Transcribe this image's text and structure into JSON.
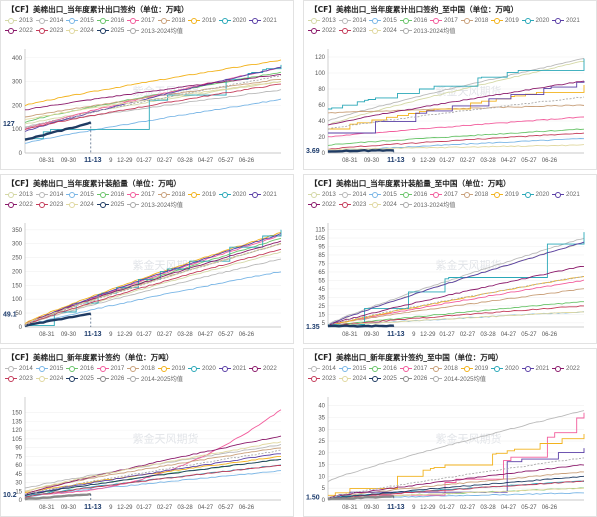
{
  "watermark": "紫金天风期货",
  "x_ticks": [
    "08-31",
    "09-30",
    "11-13",
    "9",
    "12-29",
    "01-27",
    "02-27",
    "03-28",
    "04-27",
    "05-27",
    "06-26"
  ],
  "x_tick_pos": [
    0.085,
    0.17,
    0.265,
    0.335,
    0.39,
    0.465,
    0.545,
    0.625,
    0.705,
    0.785,
    0.865
  ],
  "colors": {
    "2013": "#d4d8a6",
    "2014": "#b9b9b9",
    "2015": "#7ab6e6",
    "2016": "#6ac46a",
    "2017": "#f25c9c",
    "2018": "#c9a07a",
    "2019": "#f2b21c",
    "2020": "#2aa8b8",
    "2021": "#5a3fa6",
    "2022": "#8b1a6b",
    "2023": "#c43c5a",
    "2024": "#e0d8a0",
    "2025": "#1f3b63",
    "2026": "#8a8a8a",
    "avg": "#aaaaaa"
  },
  "panels": [
    {
      "title": "【CF】美棉出口_当年度累计出口签约（单位：万吨）",
      "legend": [
        "2013",
        "2014",
        "2015",
        "2016",
        "2017",
        "2018",
        "2019",
        "2020",
        "2021",
        "2022",
        "2023",
        "2024",
        "2025",
        "2013-2024均值"
      ],
      "legend_keys": [
        "2013",
        "2014",
        "2015",
        "2016",
        "2017",
        "2018",
        "2019",
        "2020",
        "2021",
        "2022",
        "2023",
        "2024",
        "2025",
        "avg"
      ],
      "y_ticks": [
        0,
        100,
        200,
        300,
        400
      ],
      "current": "127",
      "chart_data": {
        "type": "line",
        "ylim": [
          0,
          420
        ],
        "series": [
          {
            "key": "2013",
            "start": 120,
            "end": 300
          },
          {
            "key": "2014",
            "start": 110,
            "end": 265
          },
          {
            "key": "2015",
            "start": 40,
            "end": 225
          },
          {
            "key": "2016",
            "start": 130,
            "end": 340
          },
          {
            "key": "2017",
            "start": 100,
            "end": 360
          },
          {
            "key": "2018",
            "start": 150,
            "end": 310
          },
          {
            "key": "2019",
            "start": 200,
            "end": 390
          },
          {
            "key": "2020",
            "start": 60,
            "end": 370,
            "step": true
          },
          {
            "key": "2021",
            "start": 90,
            "end": 360
          },
          {
            "key": "2022",
            "start": 180,
            "end": 330
          },
          {
            "key": "2023",
            "start": 100,
            "end": 290
          },
          {
            "key": "2024",
            "start": 140,
            "end": 300
          },
          {
            "key": "2025",
            "start": 55,
            "end": 127,
            "partial": 0.26
          },
          {
            "key": "avg",
            "start": 105,
            "end": 325,
            "dashed": true
          }
        ]
      }
    },
    {
      "title": "【CF】美棉出口_当年度累计出口签约_至中国（单位：万吨）",
      "legend": [
        "2013",
        "2014",
        "2015",
        "2016",
        "2017",
        "2018",
        "2019",
        "2020",
        "2021",
        "2022",
        "2023",
        "2024",
        "2013-2024均值"
      ],
      "legend_keys": [
        "2013",
        "2014",
        "2015",
        "2016",
        "2017",
        "2018",
        "2019",
        "2020",
        "2021",
        "2022",
        "2023",
        "2024",
        "avg"
      ],
      "y_ticks": [
        0,
        20,
        40,
        60,
        80,
        100,
        120
      ],
      "current": "3.69",
      "chart_data": {
        "type": "line",
        "ylim": [
          0,
          125
        ],
        "series": [
          {
            "key": "2013",
            "start": 35,
            "end": 115
          },
          {
            "key": "2014",
            "start": 40,
            "end": 118
          },
          {
            "key": "2015",
            "start": 2,
            "end": 18
          },
          {
            "key": "2016",
            "start": 10,
            "end": 30
          },
          {
            "key": "2017",
            "start": 20,
            "end": 45
          },
          {
            "key": "2018",
            "start": 50,
            "end": 60
          },
          {
            "key": "2019",
            "start": 30,
            "end": 85,
            "step": true
          },
          {
            "key": "2020",
            "start": 55,
            "end": 118,
            "step": true
          },
          {
            "key": "2021",
            "start": 25,
            "end": 90,
            "step": true
          },
          {
            "key": "2022",
            "start": 35,
            "end": 90
          },
          {
            "key": "2023",
            "start": 5,
            "end": 25
          },
          {
            "key": "2024",
            "start": 4,
            "end": 10
          },
          {
            "key": "avg",
            "start": 30,
            "end": 70,
            "dashed": true
          },
          {
            "key": "2025",
            "start": 2,
            "end": 3.69,
            "partial": 0.26
          }
        ]
      }
    },
    {
      "title": "【CF】美棉出口_当年度累计装船量（单位：万吨）",
      "legend": [
        "2013",
        "2014",
        "2015",
        "2016",
        "2017",
        "2018",
        "2019",
        "2020",
        "2021",
        "2022",
        "2023",
        "2024",
        "2025",
        "2013-2024均值"
      ],
      "legend_keys": [
        "2013",
        "2014",
        "2015",
        "2016",
        "2017",
        "2018",
        "2019",
        "2020",
        "2021",
        "2022",
        "2023",
        "2024",
        "2025",
        "avg"
      ],
      "y_ticks": [
        0,
        50,
        100,
        150,
        200,
        250,
        300,
        350
      ],
      "current": "49.1",
      "chart_data": {
        "type": "line",
        "ylim": [
          0,
          360
        ],
        "series": [
          {
            "key": "2013",
            "start": 5,
            "end": 270
          },
          {
            "key": "2014",
            "start": 8,
            "end": 245
          },
          {
            "key": "2015",
            "start": 3,
            "end": 200
          },
          {
            "key": "2016",
            "start": 6,
            "end": 320
          },
          {
            "key": "2017",
            "start": 5,
            "end": 330
          },
          {
            "key": "2018",
            "start": 10,
            "end": 300
          },
          {
            "key": "2019",
            "start": 12,
            "end": 340
          },
          {
            "key": "2020",
            "start": 5,
            "end": 350,
            "step": true
          },
          {
            "key": "2021",
            "start": 8,
            "end": 335
          },
          {
            "key": "2022",
            "start": 10,
            "end": 310
          },
          {
            "key": "2023",
            "start": 6,
            "end": 280
          },
          {
            "key": "2024",
            "start": 9,
            "end": 300
          },
          {
            "key": "2025",
            "start": 4,
            "end": 49.1,
            "partial": 0.26
          },
          {
            "key": "avg",
            "start": 7,
            "end": 300,
            "dashed": true
          }
        ]
      }
    },
    {
      "title": "【CF】美棉出口_当年度累计装船量_至中国（单位：万吨）",
      "legend": [
        "2013",
        "2014",
        "2015",
        "2016",
        "2017",
        "2018",
        "2019",
        "2020",
        "2021",
        "2022",
        "2023",
        "2024",
        "2013-2024均值"
      ],
      "legend_keys": [
        "2013",
        "2014",
        "2015",
        "2016",
        "2017",
        "2018",
        "2019",
        "2020",
        "2021",
        "2022",
        "2023",
        "2024",
        "avg"
      ],
      "y_ticks": [
        5,
        15,
        25,
        35,
        45,
        55,
        65,
        75,
        85,
        95,
        105,
        115
      ],
      "current": "1.35",
      "chart_data": {
        "type": "line",
        "ylim": [
          0,
          118
        ],
        "series": [
          {
            "key": "2013",
            "start": 2,
            "end": 100
          },
          {
            "key": "2014",
            "start": 3,
            "end": 105
          },
          {
            "key": "2015",
            "start": 1,
            "end": 18
          },
          {
            "key": "2016",
            "start": 1,
            "end": 30
          },
          {
            "key": "2017",
            "start": 1,
            "end": 55
          },
          {
            "key": "2018",
            "start": 2,
            "end": 45
          },
          {
            "key": "2019",
            "start": 1,
            "end": 60
          },
          {
            "key": "2020",
            "start": 3,
            "end": 112,
            "step": true
          },
          {
            "key": "2021",
            "start": 2,
            "end": 100
          },
          {
            "key": "2022",
            "start": 2,
            "end": 72
          },
          {
            "key": "2023",
            "start": 1,
            "end": 25
          },
          {
            "key": "2024",
            "start": 1,
            "end": 18
          },
          {
            "key": "avg",
            "start": 2,
            "end": 60,
            "dashed": true
          },
          {
            "key": "2025",
            "start": 1,
            "end": 1.35,
            "partial": 0.26
          }
        ]
      }
    },
    {
      "title": "【CF】美棉出口_新年度累计签约（单位：万吨）",
      "legend": [
        "2014",
        "2015",
        "2016",
        "2017",
        "2018",
        "2019",
        "2020",
        "2021",
        "2022",
        "2023",
        "2024",
        "2025",
        "2026",
        "2014-2025均值"
      ],
      "legend_keys": [
        "2014",
        "2015",
        "2016",
        "2017",
        "2018",
        "2019",
        "2020",
        "2021",
        "2022",
        "2023",
        "2024",
        "2025",
        "2026",
        "avg"
      ],
      "y_ticks": [
        0,
        15,
        30,
        45,
        60,
        75,
        90,
        105,
        120,
        135,
        150
      ],
      "current": "10.2",
      "chart_data": {
        "type": "line",
        "ylim": [
          0,
          170
        ],
        "series": [
          {
            "key": "2014",
            "start": 20,
            "end": 95
          },
          {
            "key": "2015",
            "start": 5,
            "end": 50
          },
          {
            "key": "2016",
            "start": 8,
            "end": 70
          },
          {
            "key": "2017",
            "start": 10,
            "end": 155,
            "late": true
          },
          {
            "key": "2018",
            "start": 15,
            "end": 90
          },
          {
            "key": "2019",
            "start": 12,
            "end": 75
          },
          {
            "key": "2020",
            "start": 6,
            "end": 60
          },
          {
            "key": "2021",
            "start": 8,
            "end": 80
          },
          {
            "key": "2022",
            "start": 10,
            "end": 110
          },
          {
            "key": "2023",
            "start": 5,
            "end": 60
          },
          {
            "key": "2024",
            "start": 15,
            "end": 100
          },
          {
            "key": "2025",
            "start": 8,
            "end": 70
          },
          {
            "key": "2026",
            "start": 2,
            "end": 10.2,
            "partial": 0.26
          },
          {
            "key": "avg",
            "start": 9,
            "end": 85,
            "dashed": true
          }
        ]
      }
    },
    {
      "title": "【CF】美棉出口_新年度累计签约_至中国（单位：万吨）",
      "legend": [
        "2014",
        "2015",
        "2016",
        "2017",
        "2018",
        "2019",
        "2020",
        "2021",
        "2022",
        "2023",
        "2024",
        "2025",
        "2026",
        "2014-2025均值"
      ],
      "legend_keys": [
        "2014",
        "2015",
        "2016",
        "2017",
        "2018",
        "2019",
        "2020",
        "2021",
        "2022",
        "2023",
        "2024",
        "2025",
        "2026",
        "avg"
      ],
      "y_ticks": [
        0,
        5,
        10,
        15,
        20,
        25,
        30,
        35,
        40
      ],
      "current": "1.50",
      "chart_data": {
        "type": "line",
        "ylim": [
          0,
          42
        ],
        "series": [
          {
            "key": "2014",
            "start": 8,
            "end": 38
          },
          {
            "key": "2015",
            "start": 0.5,
            "end": 3
          },
          {
            "key": "2016",
            "start": 0.5,
            "end": 5
          },
          {
            "key": "2017",
            "start": 1,
            "end": 37,
            "step": true,
            "late": true
          },
          {
            "key": "2018",
            "start": 1,
            "end": 12
          },
          {
            "key": "2019",
            "start": 2,
            "end": 28,
            "step": true
          },
          {
            "key": "2020",
            "start": 1,
            "end": 8
          },
          {
            "key": "2021",
            "start": 1,
            "end": 22,
            "step": true
          },
          {
            "key": "2022",
            "start": 1,
            "end": 15
          },
          {
            "key": "2023",
            "start": 0.5,
            "end": 8
          },
          {
            "key": "2024",
            "start": 0.5,
            "end": 5
          },
          {
            "key": "2025",
            "start": 0.5,
            "end": 10
          },
          {
            "key": "2026",
            "start": 0.3,
            "end": 1.5,
            "partial": 0.26
          },
          {
            "key": "avg",
            "start": 1,
            "end": 18,
            "dashed": true
          }
        ]
      }
    }
  ]
}
